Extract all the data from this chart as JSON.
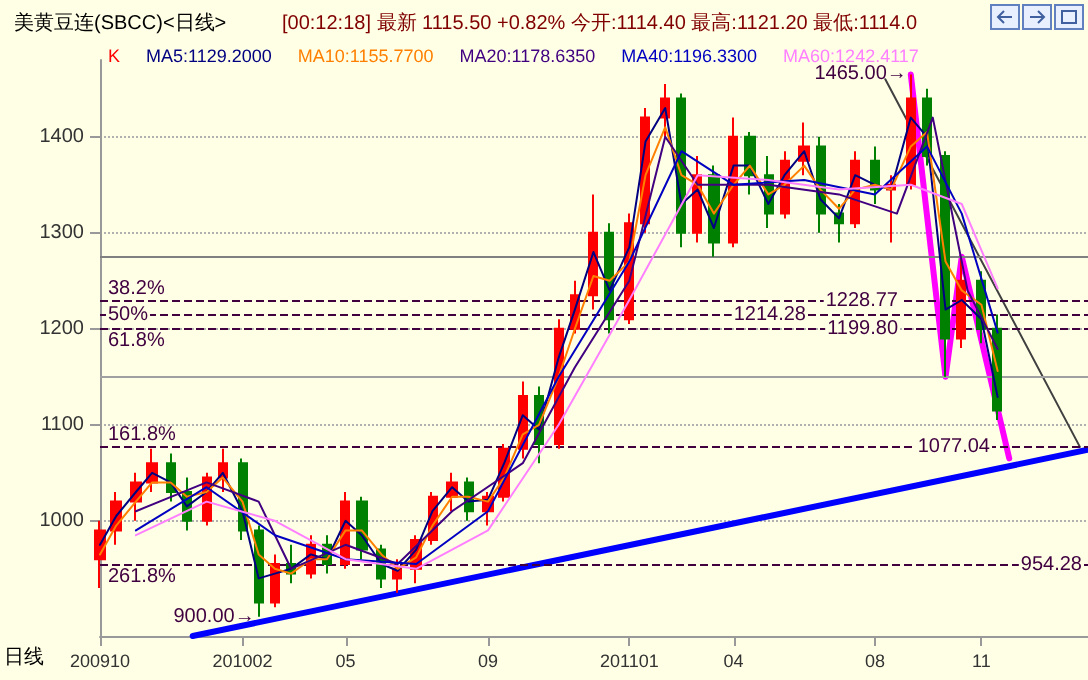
{
  "chart_data": {
    "type": "candlestick",
    "title": "美黄豆连(SBCC)<日线>",
    "subtitle": "[00:12:18] 最新 1115.50 +0.82% 今开:1114.40 最高:1121.20 最低:1114.0",
    "x": [
      "2009-10-01",
      "2009-10-15",
      "2009-11-01",
      "2009-11-15",
      "2009-12-01",
      "2009-12-15",
      "2010-01-01",
      "2010-01-15",
      "2010-02-01",
      "2010-02-15",
      "2010-03-01",
      "2010-03-15",
      "2010-04-01",
      "2010-04-15",
      "2010-05-01",
      "2010-05-15",
      "2010-06-01",
      "2010-06-15",
      "2010-07-01",
      "2010-07-15",
      "2010-08-01",
      "2010-08-15",
      "2010-09-01",
      "2010-09-15",
      "2010-10-01",
      "2010-10-15",
      "2010-11-01",
      "2010-11-15",
      "2010-12-01",
      "2010-12-15",
      "2011-01-01",
      "2011-01-15",
      "2011-02-01",
      "2011-02-15",
      "2011-03-01",
      "2011-03-15",
      "2011-04-01",
      "2011-04-15",
      "2011-05-01",
      "2011-05-15",
      "2011-06-01",
      "2011-06-15",
      "2011-07-01",
      "2011-07-15",
      "2011-08-01",
      "2011-08-15",
      "2011-09-01",
      "2011-09-15",
      "2011-10-01",
      "2011-10-15",
      "2011-11-01",
      "2011-11-15"
    ],
    "series": [
      {
        "name": "K",
        "type": "candlestick",
        "ohlc": [
          [
            960,
            1000,
            930,
            990
          ],
          [
            990,
            1030,
            975,
            1020
          ],
          [
            1020,
            1050,
            1000,
            1040
          ],
          [
            1040,
            1075,
            1030,
            1060
          ],
          [
            1060,
            1070,
            1020,
            1030
          ],
          [
            1030,
            1045,
            990,
            1000
          ],
          [
            1000,
            1050,
            995,
            1045
          ],
          [
            1045,
            1075,
            1030,
            1060
          ],
          [
            1060,
            1065,
            980,
            990
          ],
          [
            990,
            995,
            900,
            915
          ],
          [
            915,
            965,
            910,
            955
          ],
          [
            955,
            975,
            935,
            945
          ],
          [
            945,
            985,
            940,
            975
          ],
          [
            975,
            985,
            945,
            955
          ],
          [
            955,
            1030,
            950,
            1020
          ],
          [
            1020,
            1025,
            960,
            970
          ],
          [
            970,
            975,
            930,
            940
          ],
          [
            940,
            960,
            925,
            950
          ],
          [
            950,
            985,
            935,
            980
          ],
          [
            980,
            1030,
            975,
            1025
          ],
          [
            1025,
            1050,
            1010,
            1040
          ],
          [
            1040,
            1045,
            1000,
            1010
          ],
          [
            1010,
            1030,
            995,
            1025
          ],
          [
            1025,
            1080,
            1020,
            1075
          ],
          [
            1075,
            1145,
            1065,
            1130
          ],
          [
            1130,
            1140,
            1060,
            1080
          ],
          [
            1080,
            1210,
            1075,
            1200
          ],
          [
            1200,
            1250,
            1195,
            1235
          ],
          [
            1235,
            1340,
            1220,
            1300
          ],
          [
            1300,
            1310,
            1195,
            1210
          ],
          [
            1210,
            1320,
            1205,
            1310
          ],
          [
            1310,
            1430,
            1300,
            1420
          ],
          [
            1420,
            1455,
            1400,
            1440
          ],
          [
            1440,
            1445,
            1285,
            1300
          ],
          [
            1300,
            1380,
            1290,
            1360
          ],
          [
            1360,
            1370,
            1275,
            1290
          ],
          [
            1290,
            1420,
            1285,
            1400
          ],
          [
            1400,
            1405,
            1340,
            1360
          ],
          [
            1360,
            1380,
            1305,
            1320
          ],
          [
            1320,
            1385,
            1315,
            1375
          ],
          [
            1375,
            1415,
            1360,
            1390
          ],
          [
            1390,
            1400,
            1300,
            1320
          ],
          [
            1320,
            1330,
            1290,
            1310
          ],
          [
            1310,
            1385,
            1305,
            1375
          ],
          [
            1375,
            1390,
            1330,
            1345
          ],
          [
            1345,
            1360,
            1290,
            1350
          ],
          [
            1350,
            1465,
            1345,
            1440
          ],
          [
            1440,
            1450,
            1370,
            1380
          ],
          [
            1380,
            1385,
            1150,
            1190
          ],
          [
            1190,
            1275,
            1180,
            1250
          ],
          [
            1250,
            1260,
            1185,
            1200
          ],
          [
            1200,
            1215,
            1105,
            1115
          ]
        ],
        "colors": [
          "#ff0000",
          "#ff0000",
          "#ff0000",
          "#ff0000",
          "#008000",
          "#008000",
          "#ff0000",
          "#ff0000",
          "#008000",
          "#008000",
          "#ff0000",
          "#008000",
          "#ff0000",
          "#008000",
          "#ff0000",
          "#008000",
          "#008000",
          "#ff0000",
          "#ff0000",
          "#ff0000",
          "#ff0000",
          "#008000",
          "#ff0000",
          "#ff0000",
          "#ff0000",
          "#008000",
          "#ff0000",
          "#ff0000",
          "#ff0000",
          "#008000",
          "#ff0000",
          "#ff0000",
          "#ff0000",
          "#008000",
          "#ff0000",
          "#008000",
          "#ff0000",
          "#008000",
          "#008000",
          "#ff0000",
          "#ff0000",
          "#008000",
          "#008000",
          "#ff0000",
          "#008000",
          "#ff0000",
          "#ff0000",
          "#008000",
          "#008000",
          "#ff0000",
          "#008000",
          "#008000"
        ]
      },
      {
        "name": "MA5:1129.2000",
        "type": "line",
        "color": "#000080",
        "values": [
          975,
          1005,
          1030,
          1050,
          1040,
          1015,
          1030,
          1050,
          1010,
          940,
          945,
          950,
          965,
          960,
          1000,
          985,
          955,
          948,
          970,
          1010,
          1035,
          1020,
          1022,
          1060,
          1110,
          1095,
          1170,
          1220,
          1280,
          1240,
          1285,
          1395,
          1430,
          1330,
          1345,
          1305,
          1370,
          1370,
          1330,
          1360,
          1385,
          1335,
          1315,
          1360,
          1350,
          1345,
          1420,
          1400,
          1220,
          1230,
          1210,
          1129
        ]
      },
      {
        "name": "MA10:1155.7700",
        "type": "line",
        "color": "#ff8000",
        "values": [
          965,
          995,
          1020,
          1040,
          1040,
          1025,
          1030,
          1045,
          1020,
          965,
          950,
          945,
          960,
          960,
          990,
          990,
          965,
          950,
          962,
          995,
          1025,
          1025,
          1020,
          1045,
          1090,
          1100,
          1150,
          1200,
          1255,
          1250,
          1270,
          1360,
          1410,
          1360,
          1350,
          1320,
          1350,
          1370,
          1340,
          1350,
          1370,
          1345,
          1325,
          1345,
          1350,
          1345,
          1390,
          1405,
          1270,
          1240,
          1225,
          1156
        ]
      },
      {
        "name": "MA20:1178.6350",
        "type": "line",
        "color": "#400080",
        "x": [
          "2009-11-01",
          "2010-01-01",
          "2010-02-15",
          "2010-03-15",
          "2010-05-01",
          "2010-06-15",
          "2010-08-01",
          "2010-10-01",
          "2010-11-15",
          "2011-01-01",
          "2011-02-01",
          "2011-03-01",
          "2011-05-01",
          "2011-07-01",
          "2011-08-20",
          "2011-09-20",
          "2011-10-20",
          "2011-11-15"
        ],
        "values": [
          1010,
          1040,
          1020,
          950,
          975,
          955,
          1010,
          1060,
          1160,
          1250,
          1400,
          1350,
          1350,
          1340,
          1320,
          1420,
          1240,
          1179
        ]
      },
      {
        "name": "MA40:1196.3300",
        "type": "line",
        "color": "#0000c0",
        "x": [
          "2009-11-01",
          "2010-01-01",
          "2010-03-01",
          "2010-05-01",
          "2010-07-01",
          "2010-09-01",
          "2010-11-01",
          "2011-01-01",
          "2011-02-15",
          "2011-04-01",
          "2011-06-01",
          "2011-08-01",
          "2011-09-15",
          "2011-10-15",
          "2011-11-15"
        ],
        "values": [
          990,
          1035,
          985,
          960,
          955,
          1010,
          1150,
          1270,
          1385,
          1350,
          1355,
          1340,
          1390,
          1320,
          1196
        ]
      },
      {
        "name": "MA60:1242.4117",
        "type": "line",
        "color": "#ff80ff",
        "x": [
          "2009-11-01",
          "2010-01-01",
          "2010-03-01",
          "2010-05-01",
          "2010-07-01",
          "2010-09-01",
          "2010-11-01",
          "2011-01-01",
          "2011-03-01",
          "2011-05-01",
          "2011-07-01",
          "2011-09-01",
          "2011-10-15",
          "2011-11-15"
        ],
        "values": [
          985,
          1020,
          1000,
          960,
          950,
          990,
          1100,
          1230,
          1360,
          1355,
          1345,
          1350,
          1330,
          1242
        ]
      },
      {
        "type": "line",
        "color": "#0000ff",
        "x": [
          "2009-12-20",
          "2012-02-01"
        ],
        "values": [
          880,
          1074
        ]
      },
      {
        "type": "line",
        "color": "#404040",
        "x": [
          "2011-08-10",
          "2012-01-25"
        ],
        "values": [
          1460,
          1077
        ]
      },
      {
        "type": "line",
        "color": "#ff00ff",
        "x": [
          "2011-09-01",
          "2011-10-01",
          "2011-10-15",
          "2011-11-25"
        ],
        "values": [
          1465,
          1150,
          1275,
          1065
        ]
      }
    ],
    "xlim": [
      "2009-10-01",
      "2012-02-01"
    ],
    "xticks": [
      {
        "value": "2009-10-01",
        "label": "200910"
      },
      {
        "value": "2010-02-01",
        "label": "201002"
      },
      {
        "value": "2010-05-01",
        "label": "05"
      },
      {
        "value": "2010-09-01",
        "label": "09"
      },
      {
        "value": "2011-01-01",
        "label": "201101"
      },
      {
        "value": "2011-04-01",
        "label": "04"
      },
      {
        "value": "2011-08-01",
        "label": "08"
      },
      {
        "value": "2011-11-01",
        "label": "11"
      }
    ],
    "ylim": [
      880,
      1480
    ],
    "yticks": [
      1000,
      1100,
      1200,
      1300,
      1400
    ],
    "ref_lines": [
      {
        "axis": "y",
        "value": 1275,
        "label": null,
        "color": "#808080",
        "line_style": "solid"
      },
      {
        "axis": "y",
        "value": 1150,
        "label": null,
        "color": "#a0a0a0",
        "line_style": "solid"
      },
      {
        "axis": "y",
        "value": 1228.77,
        "label": "1228.77",
        "color": "#400040",
        "line_style": "dashed"
      },
      {
        "axis": "y",
        "value": 1214.28,
        "label": "1214.28",
        "color": "#400040",
        "line_style": "dashed"
      },
      {
        "axis": "y",
        "value": 1199.8,
        "label": "1199.80",
        "color": "#400040",
        "line_style": "dashed"
      },
      {
        "axis": "y",
        "value": 1077.04,
        "label": "1077.04",
        "color": "#400040",
        "line_style": "dashed"
      },
      {
        "axis": "y",
        "value": 954.28,
        "label": "954.28",
        "color": "#400040",
        "line_style": "dashed"
      }
    ],
    "annotations": [
      {
        "text": "38.2%",
        "x": "2009-10-01",
        "y": 1228.77
      },
      {
        "text": "50%",
        "x": "2009-10-01",
        "y": 1214.28
      },
      {
        "text": "61.8%",
        "x": "2009-10-01",
        "y": 1199.8
      },
      {
        "text": "161.8%",
        "x": "2009-10-01",
        "y": 1077.04
      },
      {
        "text": "261.8%",
        "x": "2009-10-01",
        "y": 954.28
      },
      {
        "text": "1465.00→",
        "x": "2011-09-01",
        "y": 1465
      },
      {
        "text": "900.00→",
        "x": "2010-02-15",
        "y": 900
      },
      "日线"
    ],
    "grid": "y",
    "legend": "top left",
    "marker": "none"
  }
}
